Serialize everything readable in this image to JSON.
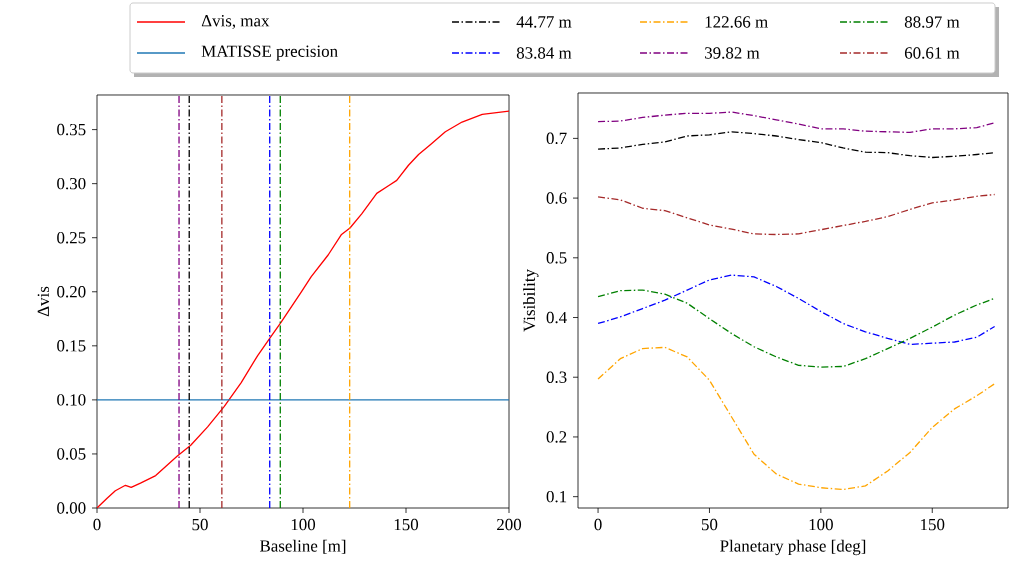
{
  "chart_data": [
    {
      "type": "line",
      "xlabel": "Baseline [m]",
      "ylabel": "Δvis",
      "xlim": [
        0,
        200
      ],
      "ylim": [
        0,
        0.382
      ],
      "xticks": [
        0,
        50,
        100,
        150,
        200
      ],
      "yticks": [
        {
          "value": 0,
          "label": "0.00"
        },
        {
          "value": 0.05,
          "label": "0.05"
        },
        {
          "value": 0.1,
          "label": "0.10"
        },
        {
          "value": 0.15,
          "label": "0.15"
        },
        {
          "value": 0.2,
          "label": "0.20"
        },
        {
          "value": 0.25,
          "label": "0.25"
        },
        {
          "value": 0.3,
          "label": "0.30"
        },
        {
          "value": 0.35,
          "label": "0.35"
        }
      ],
      "series": [
        {
          "name": "Δvis, max",
          "color": "#ff0000",
          "x": [
            0,
            4.9,
            8.9,
            13.8,
            16.6,
            21.1,
            28.5,
            39,
            45.5,
            53.7,
            61.8,
            70,
            78,
            84.6,
            89.4,
            99.2,
            104,
            112.2,
            118.7,
            122.8,
            128.5,
            135.8,
            141.5,
            145.5,
            151.2,
            156.1,
            161.8,
            169.1,
            177.2,
            187,
            200
          ],
          "values": [
            0,
            0.009,
            0.016,
            0.021,
            0.019,
            0.023,
            0.03,
            0.048,
            0.058,
            0.075,
            0.094,
            0.116,
            0.141,
            0.159,
            0.172,
            0.2,
            0.214,
            0.234,
            0.253,
            0.259,
            0.272,
            0.291,
            0.298,
            0.303,
            0.317,
            0.327,
            0.336,
            0.348,
            0.357,
            0.364,
            0.367
          ]
        }
      ],
      "ref_lines": [
        {
          "axis": "y",
          "value": 0.1,
          "label": "MATISSE precision",
          "color": "#1f77b4"
        },
        {
          "axis": "x",
          "value": 39.82,
          "color": "#800080",
          "line_style": "dashdot"
        },
        {
          "axis": "x",
          "value": 44.77,
          "color": "#000000",
          "line_style": "dashdot"
        },
        {
          "axis": "x",
          "value": 60.61,
          "color": "#a52a2a",
          "line_style": "dashdot"
        },
        {
          "axis": "x",
          "value": 83.84,
          "color": "#0000ff",
          "line_style": "dashdot"
        },
        {
          "axis": "x",
          "value": 88.97,
          "color": "#008000",
          "line_style": "dashdot"
        },
        {
          "axis": "x",
          "value": 122.66,
          "color": "#ffa500",
          "line_style": "dashdot"
        }
      ],
      "legend": "top"
    },
    {
      "type": "line",
      "xlabel": "Planetary phase [deg]",
      "ylabel": "Visibility",
      "xlim": [
        -9,
        184
      ],
      "ylim": [
        0.081,
        0.776
      ],
      "xticks": [
        0,
        50,
        100,
        150
      ],
      "yticks": [
        0.1,
        0.2,
        0.3,
        0.4,
        0.5,
        0.6,
        0.7
      ],
      "line_style": "dashdot",
      "x": [
        0,
        10,
        20,
        30,
        40,
        50,
        60,
        70,
        80,
        90,
        100,
        110,
        120,
        130,
        140,
        150,
        160,
        170,
        178
      ],
      "series": [
        {
          "name": "44.77 m",
          "color": "#000000",
          "values": [
            0.682,
            0.684,
            0.69,
            0.694,
            0.704,
            0.706,
            0.711,
            0.708,
            0.704,
            0.698,
            0.693,
            0.684,
            0.677,
            0.676,
            0.671,
            0.668,
            0.67,
            0.673,
            0.676
          ]
        },
        {
          "name": "83.84 m",
          "color": "#0000ff",
          "values": [
            0.39,
            0.401,
            0.415,
            0.429,
            0.446,
            0.463,
            0.471,
            0.468,
            0.452,
            0.432,
            0.41,
            0.39,
            0.376,
            0.365,
            0.355,
            0.357,
            0.359,
            0.367,
            0.385
          ]
        },
        {
          "name": "122.66 m",
          "color": "#ffa500",
          "values": [
            0.297,
            0.331,
            0.348,
            0.35,
            0.334,
            0.295,
            0.233,
            0.171,
            0.138,
            0.121,
            0.115,
            0.112,
            0.118,
            0.143,
            0.174,
            0.216,
            0.247,
            0.269,
            0.289
          ]
        },
        {
          "name": "39.82 m",
          "color": "#800080",
          "values": [
            0.728,
            0.729,
            0.735,
            0.739,
            0.742,
            0.742,
            0.744,
            0.738,
            0.731,
            0.724,
            0.716,
            0.716,
            0.712,
            0.711,
            0.71,
            0.716,
            0.716,
            0.718,
            0.726
          ]
        },
        {
          "name": "88.97 m",
          "color": "#008000",
          "values": [
            0.435,
            0.445,
            0.446,
            0.439,
            0.424,
            0.398,
            0.373,
            0.351,
            0.334,
            0.32,
            0.317,
            0.318,
            0.331,
            0.348,
            0.365,
            0.384,
            0.404,
            0.421,
            0.432
          ]
        },
        {
          "name": "60.61 m",
          "color": "#a52a2a",
          "values": [
            0.602,
            0.597,
            0.583,
            0.579,
            0.567,
            0.555,
            0.548,
            0.54,
            0.539,
            0.54,
            0.547,
            0.554,
            0.561,
            0.569,
            0.581,
            0.592,
            0.597,
            0.603,
            0.606
          ]
        }
      ],
      "legend": "top"
    }
  ]
}
